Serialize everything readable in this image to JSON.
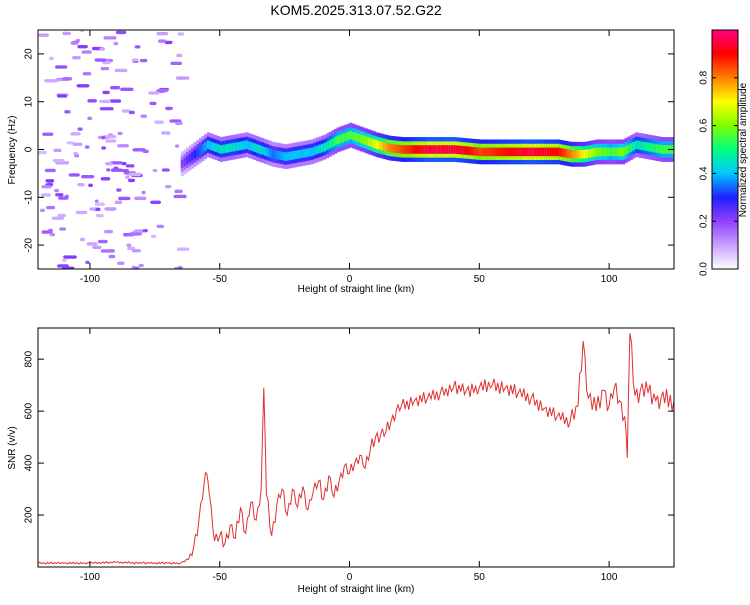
{
  "page_title": "KOM5.2025.313.07.52.G22",
  "chart_data": [
    {
      "type": "heatmap",
      "xlabel": "Height of straight line (km)",
      "ylabel": "Frequency (Hz)",
      "xlim": [
        -120,
        125
      ],
      "ylim": [
        -25,
        25
      ],
      "xticks": [
        -100,
        -50,
        0,
        50,
        100
      ],
      "xtick_labels": [
        "-100",
        "-50",
        "0",
        "50",
        "100"
      ],
      "yticks": [
        -20,
        -10,
        0,
        10,
        20
      ],
      "ytick_labels": [
        "-20",
        "-10",
        "0",
        "10",
        "20"
      ],
      "colorbar": {
        "label": "Normalized spectral amplitude",
        "range": [
          0,
          1
        ],
        "ticks": [
          0.0,
          0.2,
          0.4,
          0.6,
          0.8
        ],
        "tick_labels": [
          "0.0",
          "0.2",
          "0.4",
          "0.6",
          "0.8"
        ],
        "colors": [
          "#ffffff",
          "#c8a0ff",
          "#9040ff",
          "#2020ff",
          "#00c8ff",
          "#00ff80",
          "#80ff00",
          "#ffff00",
          "#ff8000",
          "#ff0000",
          "#ff0080"
        ]
      },
      "ridge": {
        "description": "Frequency trace of the dominant spectral peak",
        "x": [
          -65,
          -60,
          -55,
          -50,
          -45,
          -40,
          -35,
          -30,
          -25,
          -20,
          -15,
          -10,
          -5,
          0,
          5,
          10,
          15,
          20,
          30,
          40,
          50,
          60,
          70,
          80,
          85,
          90,
          95,
          100,
          105,
          110,
          115,
          120,
          125
        ],
        "freq": [
          -3,
          -1,
          1,
          0,
          0.5,
          1,
          0,
          -1,
          -1.5,
          -1,
          -0.5,
          0.5,
          2,
          3,
          2,
          1,
          0.3,
          0,
          0,
          0,
          -0.5,
          -0.5,
          -0.5,
          -0.5,
          -1,
          -1,
          -0.5,
          -0.5,
          -0.5,
          1,
          0.5,
          0,
          0
        ],
        "amplitude": [
          0.2,
          0.3,
          0.4,
          0.45,
          0.45,
          0.4,
          0.45,
          0.35,
          0.4,
          0.4,
          0.4,
          0.45,
          0.55,
          0.55,
          0.6,
          0.7,
          0.8,
          0.85,
          0.95,
          0.95,
          0.85,
          0.9,
          0.95,
          0.9,
          0.8,
          0.7,
          0.6,
          0.55,
          0.6,
          0.45,
          0.5,
          0.55,
          0.55
        ]
      },
      "noise_region": {
        "x_from": -120,
        "x_to": -65,
        "amplitude": 0.12
      }
    },
    {
      "type": "line",
      "xlabel": "Height of straight line (km)",
      "ylabel": "SNR (v/v)",
      "xlim": [
        -120,
        125
      ],
      "ylim": [
        0,
        920
      ],
      "xticks": [
        -100,
        -50,
        0,
        50,
        100
      ],
      "xtick_labels": [
        "-100",
        "-50",
        "0",
        "50",
        "100"
      ],
      "yticks": [
        200,
        400,
        600,
        800
      ],
      "ytick_labels": [
        "200",
        "400",
        "600",
        "800"
      ],
      "color": "#e03030",
      "series": [
        {
          "name": "SNR",
          "x": [
            -120,
            -110,
            -100,
            -90,
            -80,
            -70,
            -65,
            -62,
            -60,
            -58,
            -56,
            -55,
            -54,
            -52,
            -50,
            -48,
            -46,
            -44,
            -42,
            -40,
            -38,
            -36,
            -34,
            -33,
            -32,
            -30,
            -28,
            -26,
            -24,
            -22,
            -20,
            -18,
            -16,
            -14,
            -12,
            -10,
            -8,
            -6,
            -4,
            -2,
            0,
            2,
            4,
            6,
            8,
            10,
            12,
            14,
            16,
            18,
            20,
            25,
            30,
            35,
            40,
            45,
            50,
            55,
            60,
            65,
            70,
            75,
            80,
            85,
            88,
            90,
            92,
            95,
            98,
            100,
            102,
            104,
            106,
            107,
            108,
            110,
            112,
            115,
            118,
            120,
            125
          ],
          "y": [
            15,
            15,
            15,
            18,
            15,
            15,
            15,
            30,
            80,
            180,
            320,
            360,
            280,
            100,
            120,
            90,
            160,
            110,
            230,
            130,
            250,
            180,
            300,
            690,
            280,
            120,
            240,
            300,
            200,
            300,
            230,
            310,
            220,
            290,
            330,
            260,
            350,
            270,
            330,
            390,
            360,
            400,
            430,
            380,
            450,
            500,
            510,
            520,
            560,
            600,
            620,
            640,
            650,
            670,
            690,
            680,
            690,
            700,
            690,
            670,
            650,
            610,
            580,
            560,
            620,
            870,
            650,
            600,
            680,
            620,
            690,
            640,
            580,
            420,
            900,
            660,
            680,
            670,
            640,
            650,
            640
          ]
        }
      ]
    }
  ]
}
